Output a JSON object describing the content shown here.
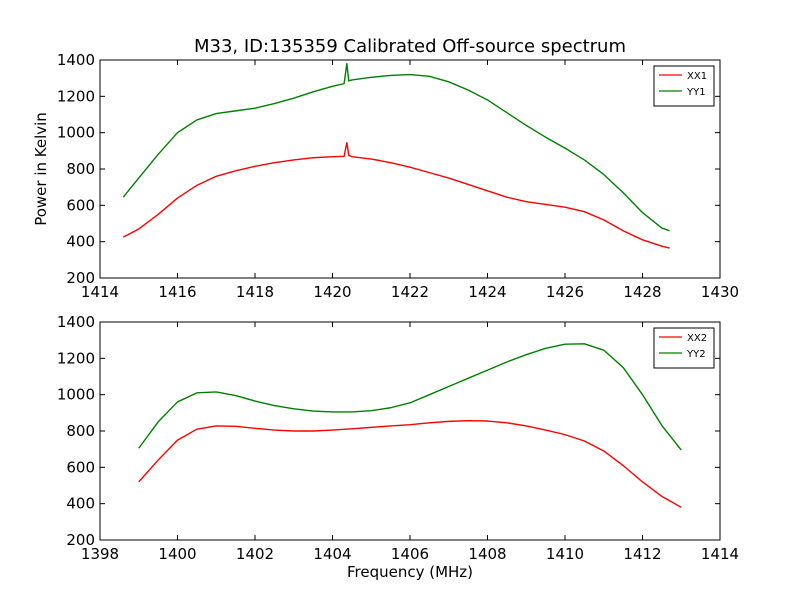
{
  "figure": {
    "title": "M33, ID:135359 Calibrated Off-source spectrum"
  },
  "chart_data": [
    {
      "type": "line",
      "title": "M33, ID:135359 Calibrated Off-source spectrum",
      "xlabel": "",
      "ylabel": "Power in Kelvin",
      "xlim": [
        1414,
        1430
      ],
      "ylim": [
        200,
        1400
      ],
      "xticks": [
        1414,
        1416,
        1418,
        1420,
        1422,
        1424,
        1426,
        1428,
        1430
      ],
      "yticks": [
        200,
        400,
        600,
        800,
        1000,
        1200,
        1400
      ],
      "legend_position": "top-right",
      "series": [
        {
          "name": "XX1",
          "color": "#ff0000",
          "x": [
            1414.6,
            1415.0,
            1415.5,
            1416.0,
            1416.5,
            1417.0,
            1417.5,
            1418.0,
            1418.5,
            1419.0,
            1419.5,
            1420.0,
            1420.3,
            1420.37,
            1420.42,
            1420.5,
            1421.0,
            1421.5,
            1422.0,
            1422.5,
            1423.0,
            1423.5,
            1424.0,
            1424.5,
            1425.0,
            1425.5,
            1426.0,
            1426.5,
            1427.0,
            1427.5,
            1428.0,
            1428.5,
            1428.7
          ],
          "y": [
            425,
            470,
            550,
            640,
            710,
            760,
            790,
            815,
            835,
            850,
            862,
            868,
            870,
            945,
            875,
            868,
            855,
            835,
            810,
            780,
            750,
            715,
            680,
            645,
            620,
            605,
            590,
            565,
            520,
            460,
            410,
            375,
            365
          ]
        },
        {
          "name": "YY1",
          "color": "#008000",
          "x": [
            1414.6,
            1415.0,
            1415.5,
            1416.0,
            1416.5,
            1417.0,
            1417.5,
            1418.0,
            1418.5,
            1419.0,
            1419.5,
            1420.0,
            1420.3,
            1420.37,
            1420.42,
            1420.5,
            1421.0,
            1421.5,
            1422.0,
            1422.5,
            1423.0,
            1423.5,
            1424.0,
            1424.5,
            1425.0,
            1425.5,
            1426.0,
            1426.5,
            1427.0,
            1427.5,
            1428.0,
            1428.5,
            1428.7
          ],
          "y": [
            645,
            750,
            880,
            1000,
            1070,
            1105,
            1120,
            1135,
            1160,
            1190,
            1225,
            1255,
            1270,
            1380,
            1285,
            1290,
            1305,
            1315,
            1320,
            1310,
            1280,
            1235,
            1180,
            1110,
            1040,
            975,
            915,
            850,
            770,
            670,
            560,
            475,
            460
          ]
        }
      ]
    },
    {
      "type": "line",
      "title": "",
      "xlabel": "Frequency (MHz)",
      "ylabel": "",
      "xlim": [
        1398,
        1414
      ],
      "ylim": [
        200,
        1400
      ],
      "xticks": [
        1398,
        1400,
        1402,
        1404,
        1406,
        1408,
        1410,
        1412,
        1414
      ],
      "yticks": [
        200,
        400,
        600,
        800,
        1000,
        1200,
        1400
      ],
      "legend_position": "top-right",
      "series": [
        {
          "name": "XX2",
          "color": "#ff0000",
          "x": [
            1399.0,
            1399.5,
            1400.0,
            1400.5,
            1401.0,
            1401.5,
            1402.0,
            1402.5,
            1403.0,
            1403.5,
            1404.0,
            1404.5,
            1405.0,
            1405.5,
            1406.0,
            1406.5,
            1407.0,
            1407.5,
            1408.0,
            1408.5,
            1409.0,
            1409.5,
            1410.0,
            1410.5,
            1411.0,
            1411.5,
            1412.0,
            1412.5,
            1413.0
          ],
          "y": [
            520,
            640,
            750,
            810,
            828,
            826,
            815,
            805,
            800,
            800,
            805,
            812,
            820,
            828,
            835,
            845,
            853,
            857,
            855,
            845,
            828,
            805,
            780,
            745,
            690,
            610,
            520,
            440,
            380
          ]
        },
        {
          "name": "YY2",
          "color": "#008000",
          "x": [
            1399.0,
            1399.5,
            1400.0,
            1400.5,
            1401.0,
            1401.5,
            1402.0,
            1402.5,
            1403.0,
            1403.5,
            1404.0,
            1404.5,
            1405.0,
            1405.5,
            1406.0,
            1406.5,
            1407.0,
            1407.5,
            1408.0,
            1408.5,
            1409.0,
            1409.5,
            1410.0,
            1410.5,
            1411.0,
            1411.5,
            1412.0,
            1412.5,
            1413.0
          ],
          "y": [
            705,
            850,
            960,
            1010,
            1015,
            995,
            965,
            940,
            922,
            910,
            905,
            905,
            912,
            928,
            955,
            1000,
            1045,
            1090,
            1135,
            1180,
            1220,
            1255,
            1278,
            1280,
            1245,
            1150,
            1000,
            830,
            695
          ]
        }
      ]
    }
  ]
}
